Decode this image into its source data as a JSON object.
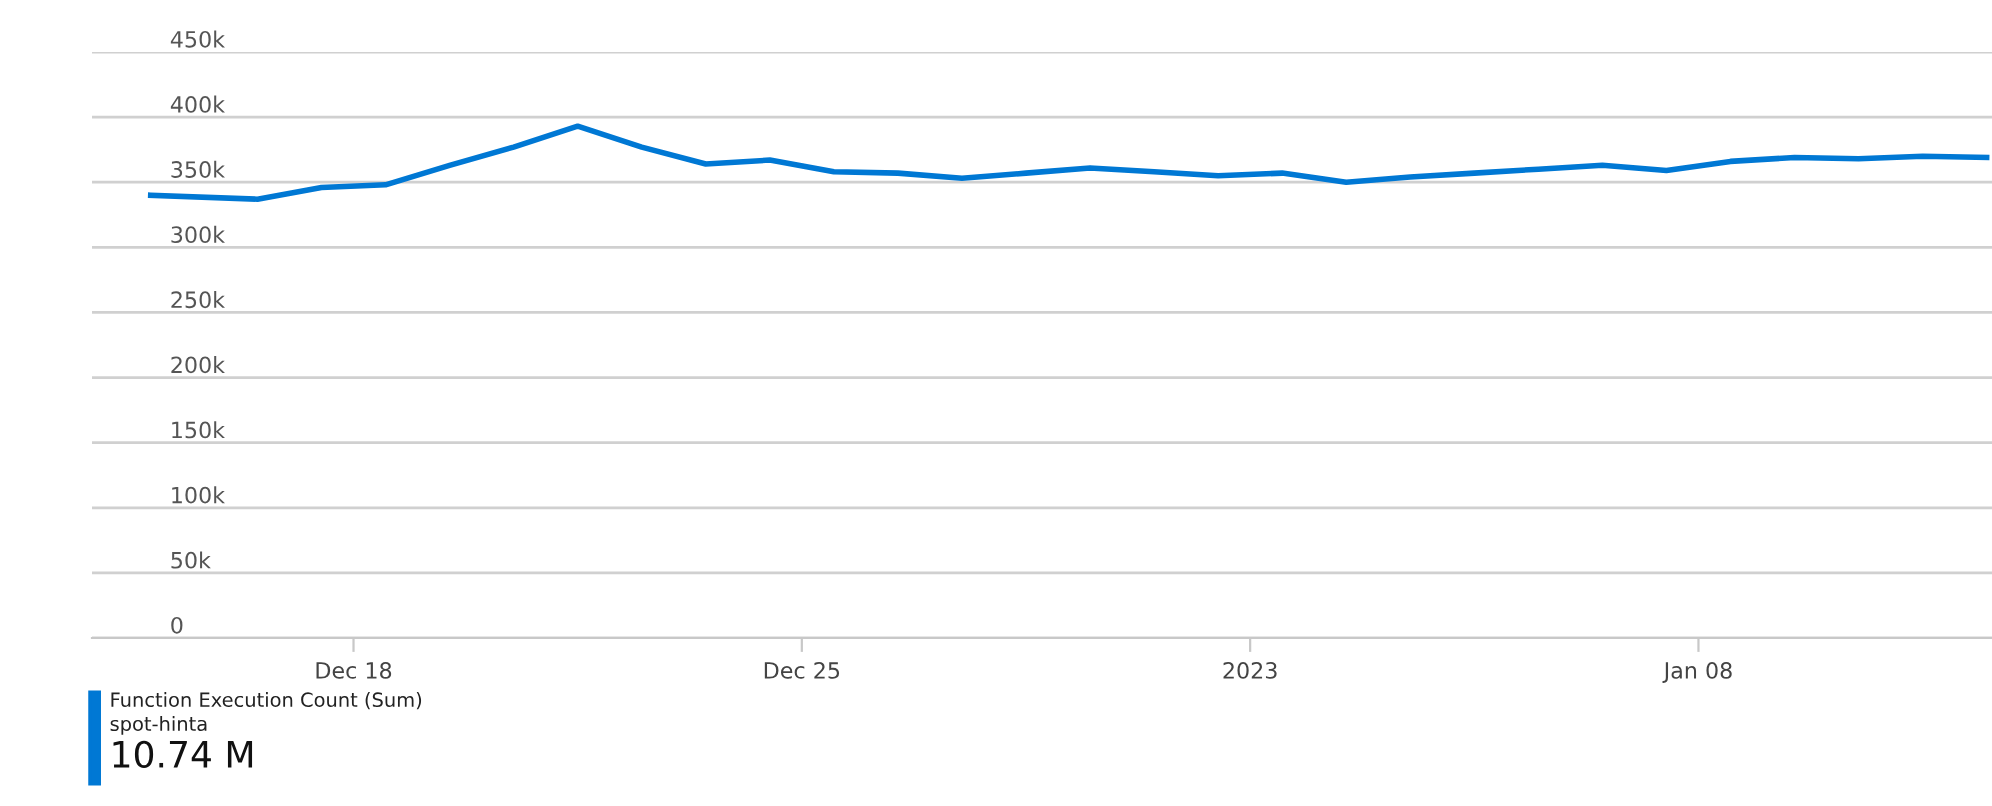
{
  "chart_data": {
    "type": "line",
    "x": [
      "2022-12-14T20:00",
      "2022-12-16T12:00",
      "2022-12-17T12:00",
      "2022-12-18T12:00",
      "2022-12-19T12:00",
      "2022-12-20T12:00",
      "2022-12-21T12:00",
      "2022-12-22T12:00",
      "2022-12-23T12:00",
      "2022-12-24T12:00",
      "2022-12-25T12:00",
      "2022-12-26T12:00",
      "2022-12-27T12:00",
      "2022-12-28T12:00",
      "2022-12-29T12:00",
      "2022-12-30T12:00",
      "2022-12-31T12:00",
      "2023-01-01T12:00",
      "2023-01-02T12:00",
      "2023-01-03T12:00",
      "2023-01-04T12:00",
      "2023-01-05T12:00",
      "2023-01-06T12:00",
      "2023-01-07T12:00",
      "2023-01-08T12:00",
      "2023-01-09T12:00",
      "2023-01-10T12:00",
      "2023-01-11T12:00",
      "2023-01-12T12:00"
    ],
    "series": [
      {
        "name": "Function Execution Count (Sum)",
        "color": "#0078d4",
        "values": [
          340000,
          337000,
          346000,
          348000,
          363000,
          377000,
          393000,
          377000,
          364000,
          367000,
          358000,
          357000,
          353000,
          357000,
          361000,
          358000,
          355000,
          357000,
          350000,
          354000,
          357000,
          360000,
          363000,
          359000,
          366000,
          369000,
          368000,
          370000,
          369000
        ]
      }
    ],
    "annotations": [
      "spot-hinta",
      "10.74 M"
    ],
    "xlim": [
      "2022-12-13T22:00",
      "2023-01-12T14:00"
    ],
    "xticks": [
      {
        "value": "2022-12-18",
        "label": "Dec 18"
      },
      {
        "value": "2022-12-25",
        "label": "Dec 25"
      },
      {
        "value": "2023-01-01",
        "label": "2023"
      },
      {
        "value": "2023-01-08",
        "label": "Jan 08"
      }
    ],
    "ylim": [
      0,
      450000
    ],
    "yticks": [
      {
        "value": 0,
        "label": "0"
      },
      {
        "value": 50000,
        "label": "50k"
      },
      {
        "value": 100000,
        "label": "100k"
      },
      {
        "value": 150000,
        "label": "150k"
      },
      {
        "value": 200000,
        "label": "200k"
      },
      {
        "value": 250000,
        "label": "250k"
      },
      {
        "value": 300000,
        "label": "300k"
      },
      {
        "value": 350000,
        "label": "350k"
      },
      {
        "value": 400000,
        "label": "400k"
      },
      {
        "value": 450000,
        "label": "450k"
      }
    ],
    "grid": "y",
    "legend": "bottom left",
    "marker": "none",
    "line_style": "solid"
  }
}
